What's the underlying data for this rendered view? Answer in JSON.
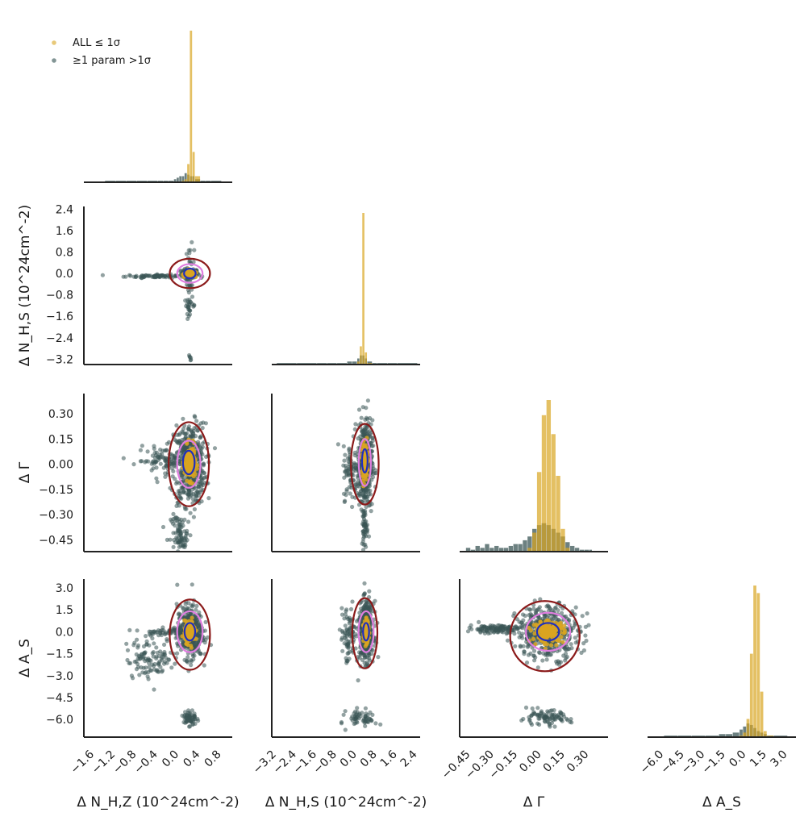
{
  "chart_data": {
    "type": "corner",
    "parameters": [
      {
        "key": "nhz",
        "label_html": "Δ N<sub>H,Z</sub> (10<sup>24</sup>cm<sup>−2</sup>)",
        "label": "Δ N_H,Z (10^24 cm^-2)",
        "range": [
          -1.8,
          1.0
        ],
        "ticks": [
          -1.6,
          -1.2,
          -0.8,
          -0.4,
          0.0,
          0.4,
          0.8
        ],
        "tick_labels": [
          "−1.6",
          "−1.2",
          "−0.8",
          "−0.4",
          "0.0",
          "0.4",
          "0.8"
        ]
      },
      {
        "key": "nhs",
        "label": "Δ N_H,S (10^24 cm^-2)",
        "range": [
          -3.4,
          2.5
        ],
        "ticks": [
          -3.2,
          -2.4,
          -1.6,
          -0.8,
          0.0,
          0.8,
          1.6,
          2.4
        ],
        "tick_labels": [
          "−3.2",
          "−2.4",
          "−1.6",
          "−0.8",
          "0.0",
          "0.8",
          "1.6",
          "2.4"
        ]
      },
      {
        "key": "gamma",
        "label": "Δ Γ",
        "range": [
          -0.52,
          0.42
        ],
        "ticks": [
          -0.45,
          -0.3,
          -0.15,
          0.0,
          0.15,
          0.3
        ],
        "tick_labels": [
          "−0.45",
          "−0.30",
          "−0.15",
          "0.00",
          "0.15",
          "0.30"
        ]
      },
      {
        "key": "as",
        "label": "Δ A_S",
        "range": [
          -7.2,
          3.6
        ],
        "ticks": [
          -6.0,
          -4.5,
          -3.0,
          -1.5,
          0.0,
          1.5,
          3.0
        ],
        "tick_labels": [
          "−6.0",
          "−4.5",
          "−3.0",
          "−1.5",
          "0.0",
          "1.5",
          "3.0"
        ]
      }
    ],
    "axis_titles": {
      "x": [
        "Δ N_H,Z (10^24cm^-2)",
        "Δ N_H,S (10^24cm^-2)",
        "Δ Γ",
        "Δ A_S"
      ],
      "y": [
        "Δ N_H,S (10^24cm^-2)",
        "Δ Γ",
        "Δ A_S"
      ]
    },
    "legend": [
      {
        "label": "ALL ≤ 1σ",
        "color": "#d9a521"
      },
      {
        "label": "≥1 param >1σ",
        "color": "#2f4f4f"
      }
    ],
    "legend_position": "top-left",
    "colors": {
      "within": "#d9a521",
      "outlier": "#3b5656",
      "contour_1sigma": "#1f2fbf",
      "contour_2sigma": "#e07ee0",
      "contour_3sigma": "#8b1a1a"
    },
    "histograms": {
      "nhz": {
        "bins": [
          -1.4,
          -1.2,
          -1.0,
          -0.8,
          -0.6,
          -0.4,
          -0.3,
          -0.2,
          -0.1,
          -0.05,
          0.0,
          0.05,
          0.1,
          0.15,
          0.2,
          0.25,
          0.3,
          0.4,
          0.5,
          0.6,
          0.8
        ],
        "within": [
          0,
          0,
          0,
          0,
          0,
          0,
          0,
          0,
          0,
          0,
          0,
          1,
          2,
          12,
          100,
          20,
          4,
          0,
          0,
          0,
          0
        ],
        "outlier": [
          1,
          1,
          1,
          1,
          1,
          1,
          1,
          1,
          2,
          3,
          4,
          4,
          6,
          5,
          4,
          4,
          2,
          1,
          1,
          1,
          0
        ]
      },
      "nhs": {
        "bins": [
          -3.2,
          -2.4,
          -1.6,
          -1.2,
          -0.8,
          -0.4,
          -0.2,
          0.0,
          0.1,
          0.2,
          0.3,
          0.4,
          0.6,
          0.8,
          1.2,
          1.6,
          2.4
        ],
        "within": [
          0,
          0,
          0,
          0,
          0,
          0,
          0,
          2,
          12,
          100,
          8,
          1,
          0,
          0,
          0,
          0,
          0
        ],
        "outlier": [
          1,
          1,
          1,
          1,
          1,
          2,
          2,
          4,
          6,
          6,
          4,
          2,
          1,
          1,
          1,
          1,
          0
        ]
      },
      "gamma": {
        "bins": [
          -0.48,
          -0.45,
          -0.42,
          -0.39,
          -0.36,
          -0.33,
          -0.3,
          -0.27,
          -0.24,
          -0.21,
          -0.18,
          -0.15,
          -0.12,
          -0.09,
          -0.06,
          -0.03,
          0.0,
          0.03,
          0.06,
          0.09,
          0.12,
          0.15,
          0.18,
          0.21,
          0.24,
          0.27,
          0.3
        ],
        "within": [
          0,
          0,
          0,
          0,
          0,
          0,
          0,
          0,
          0,
          0,
          0,
          0,
          0,
          2,
          10,
          42,
          72,
          80,
          62,
          40,
          12,
          2,
          0,
          0,
          0,
          0,
          0
        ],
        "outlier": [
          2,
          1,
          3,
          2,
          4,
          2,
          3,
          2,
          2,
          3,
          4,
          4,
          6,
          8,
          12,
          14,
          15,
          14,
          12,
          10,
          8,
          5,
          3,
          2,
          1,
          1,
          1
        ]
      },
      "as": {
        "bins": [
          -6.0,
          -5.0,
          -4.0,
          -3.0,
          -2.0,
          -1.5,
          -1.0,
          -0.5,
          -0.25,
          0.0,
          0.25,
          0.5,
          0.75,
          1.0,
          1.25,
          1.5,
          2.0,
          3.0
        ],
        "within": [
          0,
          0,
          0,
          0,
          0,
          0,
          0,
          1,
          3,
          12,
          55,
          100,
          95,
          30,
          4,
          1,
          0,
          0
        ],
        "outlier": [
          1,
          1,
          1,
          1,
          2,
          2,
          3,
          5,
          7,
          9,
          8,
          6,
          4,
          3,
          2,
          1,
          1,
          0
        ]
      }
    },
    "contours": {
      "nhs_vs_nhz": [
        {
          "sigma": 1,
          "cx": 0.2,
          "cy": 0.0,
          "rx": 0.11,
          "ry": 0.18,
          "angle": 0
        },
        {
          "sigma": 2,
          "cx": 0.2,
          "cy": 0.0,
          "rx": 0.24,
          "ry": 0.35,
          "angle": 0
        },
        {
          "sigma": 3,
          "cx": 0.2,
          "cy": 0.0,
          "rx": 0.38,
          "ry": 0.55,
          "angle": 0
        }
      ],
      "gamma_vs_nhz": [
        {
          "sigma": 1,
          "cx": 0.18,
          "cy": 0.01,
          "rx": 0.11,
          "ry": 0.07,
          "angle": 0
        },
        {
          "sigma": 2,
          "cx": 0.18,
          "cy": 0.0,
          "rx": 0.22,
          "ry": 0.14,
          "angle": 0
        },
        {
          "sigma": 3,
          "cx": 0.18,
          "cy": 0.0,
          "rx": 0.38,
          "ry": 0.25,
          "angle": 0
        }
      ],
      "gamma_vs_nhs": [
        {
          "sigma": 1,
          "cx": 0.3,
          "cy": 0.02,
          "rx": 0.11,
          "ry": 0.07,
          "angle": 0
        },
        {
          "sigma": 2,
          "cx": 0.3,
          "cy": 0.01,
          "rx": 0.24,
          "ry": 0.14,
          "angle": 0
        },
        {
          "sigma": 3,
          "cx": 0.3,
          "cy": 0.0,
          "rx": 0.55,
          "ry": 0.24,
          "angle": 0
        }
      ],
      "as_vs_nhz": [
        {
          "sigma": 1,
          "cx": 0.2,
          "cy": 0.0,
          "rx": 0.1,
          "ry": 0.6,
          "angle": 0
        },
        {
          "sigma": 2,
          "cx": 0.2,
          "cy": 0.0,
          "rx": 0.24,
          "ry": 1.4,
          "angle": 0
        },
        {
          "sigma": 3,
          "cx": 0.2,
          "cy": -0.2,
          "rx": 0.38,
          "ry": 2.4,
          "angle": 0
        }
      ],
      "as_vs_nhs": [
        {
          "sigma": 1,
          "cx": 0.35,
          "cy": 0.0,
          "rx": 0.12,
          "ry": 0.6,
          "angle": 0
        },
        {
          "sigma": 2,
          "cx": 0.35,
          "cy": 0.0,
          "rx": 0.3,
          "ry": 1.4,
          "angle": 0
        },
        {
          "sigma": 3,
          "cx": 0.3,
          "cy": -0.1,
          "rx": 0.5,
          "ry": 2.4,
          "angle": 0
        }
      ],
      "as_vs_gamma": [
        {
          "sigma": 1,
          "cx": 0.04,
          "cy": 0.0,
          "rx": 0.07,
          "ry": 0.6,
          "angle": 0
        },
        {
          "sigma": 2,
          "cx": 0.04,
          "cy": 0.0,
          "rx": 0.14,
          "ry": 1.3,
          "angle": 0
        },
        {
          "sigma": 3,
          "cx": 0.02,
          "cy": -0.3,
          "rx": 0.22,
          "ry": 2.4,
          "angle": 0
        }
      ]
    },
    "scatter_clusters": {
      "nhs_vs_nhz": [
        {
          "cx": 0.2,
          "cy": 0.0,
          "sx": 0.08,
          "sy": 0.08,
          "n": 140,
          "group": "outlier"
        },
        {
          "cx": -0.4,
          "cy": -0.1,
          "sx": 0.3,
          "sy": 0.03,
          "n": 90,
          "group": "outlier"
        },
        {
          "cx": 0.2,
          "cy": 0.0,
          "sx": 0.04,
          "sy": 0.5,
          "n": 40,
          "group": "outlier"
        },
        {
          "cx": 0.2,
          "cy": -1.2,
          "sx": 0.05,
          "sy": 0.15,
          "n": 25,
          "group": "outlier"
        },
        {
          "cx": 0.2,
          "cy": -3.15,
          "sx": 0.02,
          "sy": 0.05,
          "n": 6,
          "group": "outlier"
        },
        {
          "cx": 0.2,
          "cy": 0.0,
          "sx": 0.05,
          "sy": 0.05,
          "n": 160,
          "group": "within"
        }
      ],
      "gamma_vs_nhz": [
        {
          "cx": 0.2,
          "cy": 0.0,
          "sx": 0.15,
          "sy": 0.12,
          "n": 500,
          "group": "outlier"
        },
        {
          "cx": -0.3,
          "cy": 0.02,
          "sx": 0.25,
          "sy": 0.04,
          "n": 90,
          "group": "outlier"
        },
        {
          "cx": 0.0,
          "cy": -0.38,
          "sx": 0.08,
          "sy": 0.04,
          "n": 50,
          "group": "outlier"
        },
        {
          "cx": 0.05,
          "cy": -0.46,
          "sx": 0.06,
          "sy": 0.02,
          "n": 30,
          "group": "outlier"
        },
        {
          "cx": 0.2,
          "cy": 0.01,
          "sx": 0.05,
          "sy": 0.05,
          "n": 160,
          "group": "within"
        }
      ],
      "gamma_vs_nhs": [
        {
          "cx": 0.3,
          "cy": 0.0,
          "sx": 0.15,
          "sy": 0.13,
          "n": 450,
          "group": "outlier"
        },
        {
          "cx": -0.25,
          "cy": -0.05,
          "sx": 0.15,
          "sy": 0.08,
          "n": 70,
          "group": "outlier"
        },
        {
          "cx": 0.3,
          "cy": -0.38,
          "sx": 0.06,
          "sy": 0.06,
          "n": 45,
          "group": "outlier"
        },
        {
          "cx": 0.3,
          "cy": 0.02,
          "sx": 0.05,
          "sy": 0.05,
          "n": 160,
          "group": "within"
        }
      ],
      "gamma_hist_dummy": [],
      "as_vs_nhz": [
        {
          "cx": 0.2,
          "cy": 0.0,
          "sx": 0.12,
          "sy": 0.9,
          "n": 400,
          "group": "outlier"
        },
        {
          "cx": -0.5,
          "cy": -1.8,
          "sx": 0.25,
          "sy": 0.7,
          "n": 110,
          "group": "outlier"
        },
        {
          "cx": -0.2,
          "cy": 0.0,
          "sx": 0.25,
          "sy": 0.12,
          "n": 70,
          "group": "outlier"
        },
        {
          "cx": 0.2,
          "cy": -5.9,
          "sx": 0.06,
          "sy": 0.3,
          "n": 60,
          "group": "outlier"
        },
        {
          "cx": 0.2,
          "cy": 0.0,
          "sx": 0.05,
          "sy": 0.35,
          "n": 160,
          "group": "within"
        }
      ],
      "as_vs_nhs": [
        {
          "cx": 0.35,
          "cy": 0.0,
          "sx": 0.15,
          "sy": 1.0,
          "n": 400,
          "group": "outlier"
        },
        {
          "cx": -0.35,
          "cy": -0.3,
          "sx": 0.15,
          "sy": 1.0,
          "n": 80,
          "group": "outlier"
        },
        {
          "cx": 0.2,
          "cy": -5.9,
          "sx": 0.3,
          "sy": 0.3,
          "n": 60,
          "group": "outlier"
        },
        {
          "cx": 0.35,
          "cy": 0.0,
          "sx": 0.05,
          "sy": 0.35,
          "n": 160,
          "group": "within"
        }
      ],
      "as_vs_gamma": [
        {
          "cx": 0.04,
          "cy": 0.0,
          "sx": 0.1,
          "sy": 0.9,
          "n": 450,
          "group": "outlier"
        },
        {
          "cx": -0.3,
          "cy": 0.2,
          "sx": 0.08,
          "sy": 0.15,
          "n": 110,
          "group": "outlier"
        },
        {
          "cx": 0.02,
          "cy": -5.9,
          "sx": 0.08,
          "sy": 0.25,
          "n": 90,
          "group": "outlier"
        },
        {
          "cx": 0.04,
          "cy": 0.0,
          "sx": 0.05,
          "sy": 0.35,
          "n": 160,
          "group": "within"
        }
      ]
    }
  }
}
